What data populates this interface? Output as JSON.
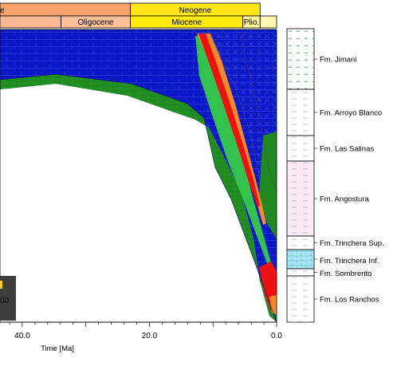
{
  "chart_data": {
    "type": "area",
    "title": "",
    "xlabel": "Time [Ma]",
    "xlim": [
      43.5,
      0.0
    ],
    "xticks": [
      {
        "value": 40.0,
        "label": "40.0"
      },
      {
        "value": 20.0,
        "label": "20.0"
      },
      {
        "value": 0.0,
        "label": "0.0"
      }
    ],
    "timescale": {
      "periods": [
        {
          "name": "Paleogene",
          "label": "e",
          "start": 66.0,
          "end": 23.0,
          "color": "#f6a26a"
        },
        {
          "name": "Neogene",
          "label": "Neogene",
          "start": 23.0,
          "end": 2.6,
          "color": "#ffe51a"
        }
      ],
      "epochs": [
        {
          "name": "Eocene",
          "label": "",
          "start": 56.0,
          "end": 33.9,
          "color": "#fbb894"
        },
        {
          "name": "Oligocene",
          "label": "Oligocene",
          "start": 33.9,
          "end": 23.0,
          "color": "#fdc09a"
        },
        {
          "name": "Miocene",
          "label": "Miocene",
          "start": 23.0,
          "end": 5.3,
          "color": "#ffeb0f"
        },
        {
          "name": "Pliocene",
          "label": "Plio.",
          "start": 5.3,
          "end": 2.6,
          "color": "#fff59b"
        },
        {
          "name": "Quaternary",
          "label": "",
          "start": 2.6,
          "end": 0.0,
          "color": "#fff7b0"
        }
      ]
    },
    "series_colors": {
      "blue_layer": "#0b18c8",
      "green_dark": "#1f8a1f",
      "green_light": "#33c24d",
      "red": "#ee1111",
      "orange": "#f08a2a"
    },
    "legend_box": {
      "label": "00"
    },
    "formations": [
      {
        "name": "Fm. Jimani",
        "color": "#ffffff",
        "pattern": "green-dots"
      },
      {
        "name": "Fm. Arroyo Blanco",
        "color": "#ffffff",
        "pattern": "dashes"
      },
      {
        "name": "Fm. Las Salinas",
        "color": "#ffffff",
        "pattern": "dashes"
      },
      {
        "name": "Fm. Angostura",
        "color": "#fbeaf3",
        "pattern": "dashes"
      },
      {
        "name": "Fm. Trinchera Sup.",
        "color": "#ffffff",
        "pattern": "dashes"
      },
      {
        "name": "Fm. Trinchera Inf.",
        "color": "#a9e6f4",
        "pattern": "bricks"
      },
      {
        "name": "Fm. Sombrerito",
        "color": "#ffffff",
        "pattern": "dashes"
      },
      {
        "name": "Fm. Los Ranchos",
        "color": "#ffffff",
        "pattern": "dashes"
      }
    ]
  }
}
